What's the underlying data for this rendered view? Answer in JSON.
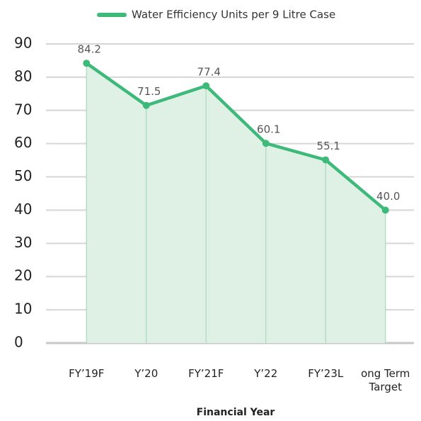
{
  "chart_data": {
    "type": "line",
    "legend": "top",
    "xlabel": "Financial Year",
    "categories": [
      "FY’19F",
      "Y’20",
      "FY’21F",
      "Y’22",
      "FY’23L",
      "ong Term Target"
    ],
    "series": [
      {
        "name": "Water Efficiency Units per 9 Litre Case",
        "color": "#3dba7a",
        "values": [
          84.2,
          71.5,
          77.4,
          60.1,
          55.1,
          40.0
        ],
        "value_labels": [
          "84.2",
          "71.5",
          "77.4",
          "60.1",
          "55.1",
          "40.0"
        ]
      }
    ],
    "ylim": [
      0,
      90
    ],
    "yticks": [
      0,
      10,
      20,
      30,
      40,
      50,
      60,
      70,
      80,
      90
    ],
    "grid": true,
    "area": true
  }
}
